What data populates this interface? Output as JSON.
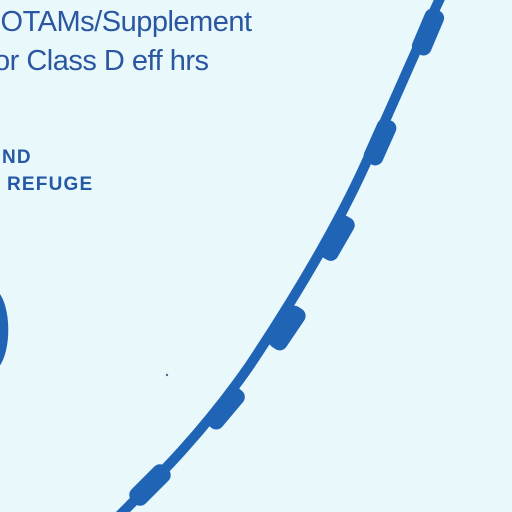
{
  "notam_note": {
    "line1": "IOTAMs/Supplement",
    "line2": "or Class D eff hrs"
  },
  "refuge_label": {
    "line1": "ND",
    "line2": "REFUGE"
  },
  "colors": {
    "background": "#e8f8fb",
    "airspace_boundary": "#1f64b5",
    "text": "#2b57a2"
  }
}
